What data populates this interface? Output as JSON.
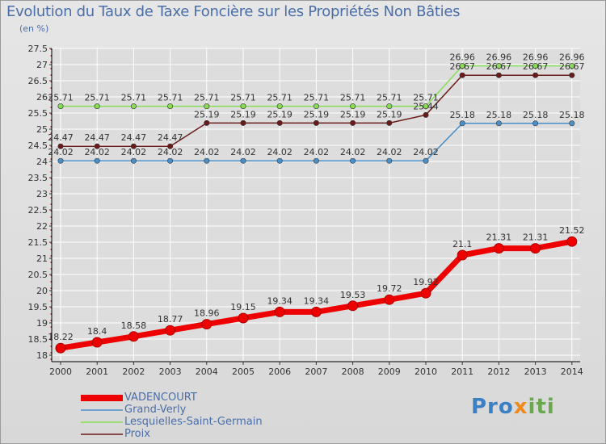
{
  "header": {
    "title": "Evolution du Taux de Taxe Foncière sur les Propriétés Non Bâties",
    "unit": "(en %)"
  },
  "logo": {
    "text": "Proxiti",
    "part1": "Pro",
    "part2": "x",
    "part3": "iti"
  },
  "colors": {
    "background": "#dcdcdc",
    "grid": "#ffffff",
    "axis": "#000000",
    "title": "#4a6ea8",
    "tick_label": "#333333"
  },
  "chart_data": {
    "type": "line",
    "title": "Evolution du Taux de Taxe Foncière sur les Propriétés Non Bâties",
    "ylabel": "(en %)",
    "xlabel": "",
    "ylim": [
      18,
      27.5
    ],
    "grid": true,
    "legend_position": "bottom-left",
    "categories": [
      "2000",
      "2001",
      "2002",
      "2003",
      "2004",
      "2005",
      "2006",
      "2007",
      "2008",
      "2009",
      "2010",
      "2011",
      "2012",
      "2013",
      "2014"
    ],
    "y_ticks": [
      "18",
      "18.5",
      "19",
      "19.5",
      "20",
      "20.5",
      "21",
      "21.5",
      "22",
      "22.5",
      "23",
      "23.5",
      "24",
      "24.5",
      "25",
      "25.5",
      "26",
      "26.5",
      "27",
      "27.5"
    ],
    "series": [
      {
        "name": "VADENCOURT",
        "color": "#ee0000",
        "values": [
          18.22,
          18.4,
          18.58,
          18.77,
          18.96,
          19.15,
          19.34,
          19.34,
          19.53,
          19.72,
          19.92,
          21.1,
          21.31,
          21.31,
          21.52
        ],
        "labels": [
          "18.22",
          "18.4",
          "18.58",
          "18.77",
          "18.96",
          "19.15",
          "19.34",
          "19.34",
          "19.53",
          "19.72",
          "19.92",
          "21.1",
          "21.31",
          "21.31",
          "21.52"
        ]
      },
      {
        "name": "Grand-Verly",
        "color": "#4a90c8",
        "values": [
          24.02,
          24.02,
          24.02,
          24.02,
          24.02,
          24.02,
          24.02,
          24.02,
          24.02,
          24.02,
          24.02,
          25.18,
          25.18,
          25.18,
          25.18
        ],
        "labels": [
          "24.02",
          "24.02",
          "24.02",
          "24.02",
          "24.02",
          "24.02",
          "24.02",
          "24.02",
          "24.02",
          "24.02",
          "24.02",
          "25.18",
          "25.18",
          "25.18",
          "25.18"
        ]
      },
      {
        "name": "Lesquielles-Saint-Germain",
        "color": "#88dd55",
        "values": [
          25.71,
          25.71,
          25.71,
          25.71,
          25.71,
          25.71,
          25.71,
          25.71,
          25.71,
          25.71,
          25.71,
          26.96,
          26.96,
          26.96,
          26.96
        ],
        "labels": [
          "25.71",
          "25.71",
          "25.71",
          "25.71",
          "25.71",
          "25.71",
          "25.71",
          "25.71",
          "25.71",
          "25.71",
          "25.71",
          "26.96",
          "26.96",
          "26.96",
          "26.96"
        ]
      },
      {
        "name": "Proix",
        "color": "#6b1a1a",
        "values": [
          24.47,
          24.47,
          24.47,
          24.47,
          25.19,
          25.19,
          25.19,
          25.19,
          25.19,
          25.19,
          25.44,
          26.67,
          26.67,
          26.67,
          26.67
        ],
        "labels": [
          "24.47",
          "24.47",
          "24.47",
          "24.47",
          "25.19",
          "25.19",
          "25.19",
          "25.19",
          "25.19",
          "25.19",
          "25.44",
          "26.67",
          "26.67",
          "26.67",
          "26.67"
        ]
      }
    ]
  }
}
